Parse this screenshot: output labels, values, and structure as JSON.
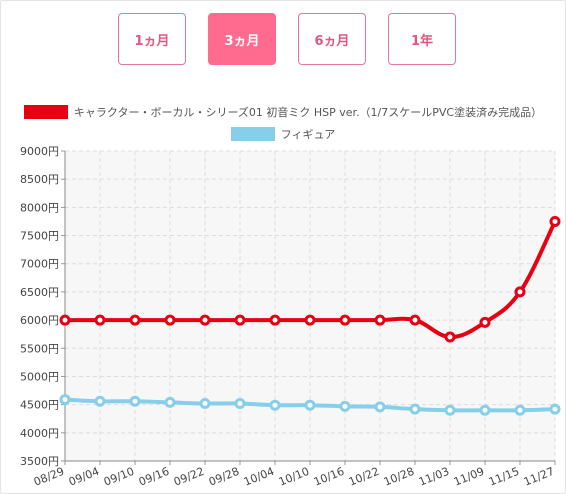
{
  "range_buttons": [
    {
      "label": "1ヵ月",
      "active": false
    },
    {
      "label": "3ヵ月",
      "active": true
    },
    {
      "label": "6ヵ月",
      "active": false
    },
    {
      "label": "1年",
      "active": false
    }
  ],
  "chart_data": {
    "type": "line",
    "title": "",
    "xlabel": "",
    "ylabel": "",
    "categories": [
      "08/29",
      "09/04",
      "09/10",
      "09/16",
      "09/22",
      "09/28",
      "10/04",
      "10/10",
      "10/16",
      "10/22",
      "10/28",
      "11/03",
      "11/09",
      "11/15",
      "11/27"
    ],
    "ylim": [
      3500,
      9000
    ],
    "y_ticks": [
      "3500円",
      "4000円",
      "4500円",
      "5000円",
      "5500円",
      "6000円",
      "6500円",
      "7000円",
      "7500円",
      "8000円",
      "8500円",
      "9000円"
    ],
    "y_tick_values": [
      3500,
      4000,
      4500,
      5000,
      5500,
      6000,
      6500,
      7000,
      7500,
      8000,
      8500,
      9000
    ],
    "grid": true,
    "legend_position": "top",
    "series": [
      {
        "name": "キャラクター・ボーカル・シリーズ01 初音ミク HSP ver.（1/7スケールPVC塗装済み完成品）",
        "color": "#e60012",
        "values": [
          6000,
          6000,
          6000,
          6000,
          6000,
          6000,
          6000,
          6000,
          6000,
          6000,
          6000,
          5700,
          5960,
          6500,
          7750
        ]
      },
      {
        "name": "フィギュア",
        "color": "#87ceeb",
        "values": [
          4590,
          4560,
          4560,
          4540,
          4520,
          4520,
          4490,
          4490,
          4470,
          4460,
          4420,
          4400,
          4400,
          4400,
          4420
        ]
      }
    ]
  }
}
